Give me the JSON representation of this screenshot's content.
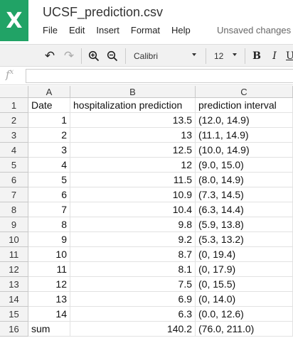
{
  "app": {
    "logo_glyph": "X",
    "accent_color": "#21a366"
  },
  "document": {
    "title": "UCSF_prediction.csv",
    "save_status": "Unsaved changes"
  },
  "menu": [
    "File",
    "Edit",
    "Insert",
    "Format",
    "Help"
  ],
  "toolbar": {
    "undo": "↶",
    "redo": "↷",
    "font_name": "Calibri",
    "font_size": "12",
    "bold": "B",
    "italic": "I",
    "underline": "U"
  },
  "formula_bar": {
    "fx": "f",
    "fx_sup": "x",
    "value": ""
  },
  "sheet": {
    "column_headers": [
      "A",
      "B",
      "C"
    ],
    "rows": [
      {
        "num": "1",
        "a": "Date",
        "b": "hospitalization prediction",
        "c": "prediction interval"
      },
      {
        "num": "2",
        "a": "1",
        "b": "13.5",
        "c": "(12.0, 14.9)"
      },
      {
        "num": "3",
        "a": "2",
        "b": "13",
        "c": "(11.1, 14.9)"
      },
      {
        "num": "4",
        "a": "3",
        "b": "12.5",
        "c": "(10.0, 14.9)"
      },
      {
        "num": "5",
        "a": "4",
        "b": "12",
        "c": "(9.0, 15.0)"
      },
      {
        "num": "6",
        "a": "5",
        "b": "11.5",
        "c": "(8.0, 14.9)"
      },
      {
        "num": "7",
        "a": "6",
        "b": "10.9",
        "c": "(7.3, 14.5)"
      },
      {
        "num": "8",
        "a": "7",
        "b": "10.4",
        "c": "(6.3, 14.4)"
      },
      {
        "num": "9",
        "a": "8",
        "b": "9.8",
        "c": "(5.9, 13.8)"
      },
      {
        "num": "10",
        "a": "9",
        "b": "9.2",
        "c": "(5.3, 13.2)"
      },
      {
        "num": "11",
        "a": "10",
        "b": "8.7",
        "c": "(0, 19.4)"
      },
      {
        "num": "12",
        "a": "11",
        "b": "8.1",
        "c": "(0, 17.9)"
      },
      {
        "num": "13",
        "a": "12",
        "b": "7.5",
        "c": "(0, 15.5)"
      },
      {
        "num": "14",
        "a": "13",
        "b": "6.9",
        "c": "(0, 14.0)"
      },
      {
        "num": "15",
        "a": "14",
        "b": "6.3",
        "c": "(0.0, 12.6)"
      },
      {
        "num": "16",
        "a": "sum",
        "b": "140.2",
        "c": "(76.0, 211.0)"
      }
    ]
  }
}
